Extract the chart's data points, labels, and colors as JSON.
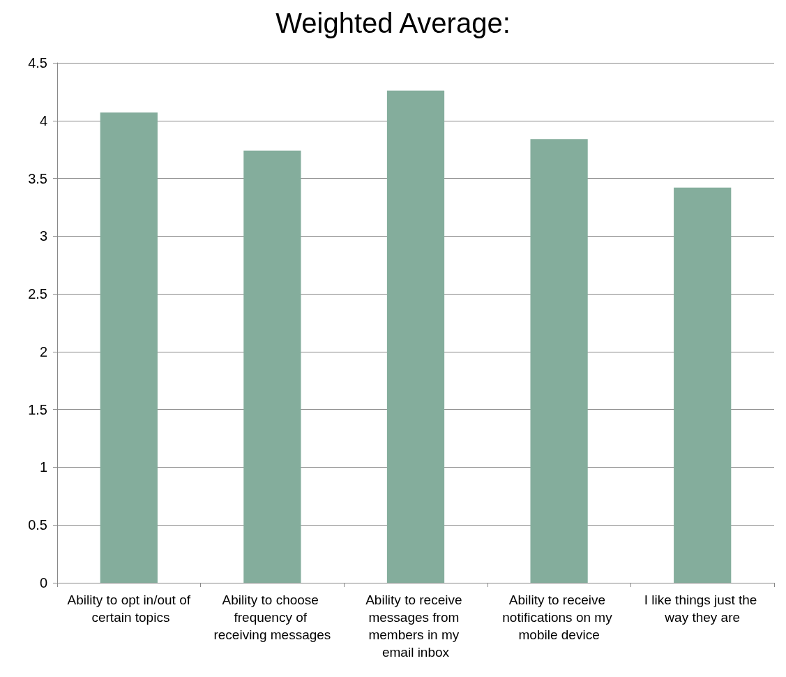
{
  "chart_data": {
    "type": "bar",
    "title": "Weighted Average:",
    "categories": [
      "Ability to opt in/out of certain topics",
      "Ability to choose frequency of receiving messages",
      "Ability to receive messages from members in my email inbox",
      "Ability to receive notifications on my mobile device",
      "I like things just the way they are"
    ],
    "values": [
      4.07,
      3.74,
      4.26,
      3.84,
      3.42
    ],
    "color": "#84ad9c",
    "ylim": [
      0,
      4.5
    ],
    "yticks": [
      0,
      0.5,
      1,
      1.5,
      2,
      2.5,
      3,
      3.5,
      4,
      4.5
    ],
    "grid": "y"
  }
}
